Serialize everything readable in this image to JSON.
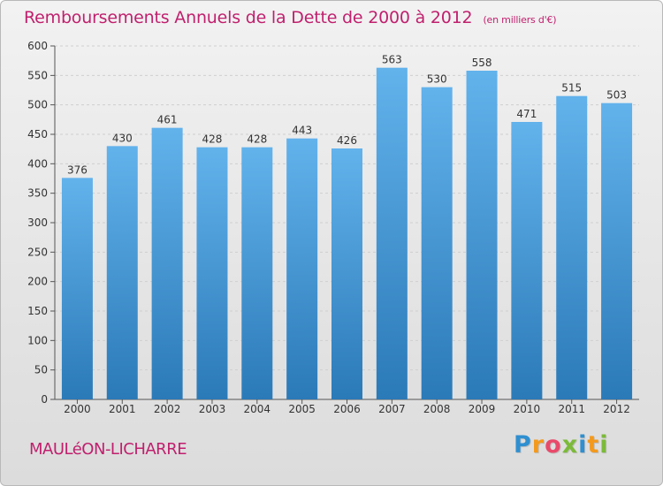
{
  "title": "Remboursements Annuels de la Dette de 2000 à 2012",
  "unit_note": "(en milliers d'€)",
  "location": "MAULéON-LICHARRE",
  "logo": {
    "letters": [
      "P",
      "r",
      "o",
      "x",
      "i",
      "t",
      "i"
    ],
    "colors": [
      "#2f8fd0",
      "#f39a1e",
      "#e94a6a",
      "#7cba3a",
      "#2f8fd0",
      "#f39a1e",
      "#7cba3a"
    ]
  },
  "colors": {
    "bar_light": "#62b2ec",
    "bar_dark": "#2b7ab8",
    "title": "#c0206e"
  },
  "chart_data": {
    "type": "bar",
    "categories": [
      "2000",
      "2001",
      "2002",
      "2003",
      "2004",
      "2005",
      "2006",
      "2007",
      "2008",
      "2009",
      "2010",
      "2011",
      "2012"
    ],
    "values": [
      376,
      430,
      461,
      428,
      428,
      443,
      426,
      563,
      530,
      558,
      471,
      515,
      503
    ],
    "title": "Remboursements Annuels de la Dette de 2000 à 2012",
    "ylabel": "",
    "xlabel": "",
    "ylim": [
      0,
      600
    ],
    "yticks": [
      0,
      50,
      100,
      150,
      200,
      250,
      300,
      350,
      400,
      450,
      500,
      550,
      600
    ],
    "grid": true,
    "legend": "none"
  }
}
